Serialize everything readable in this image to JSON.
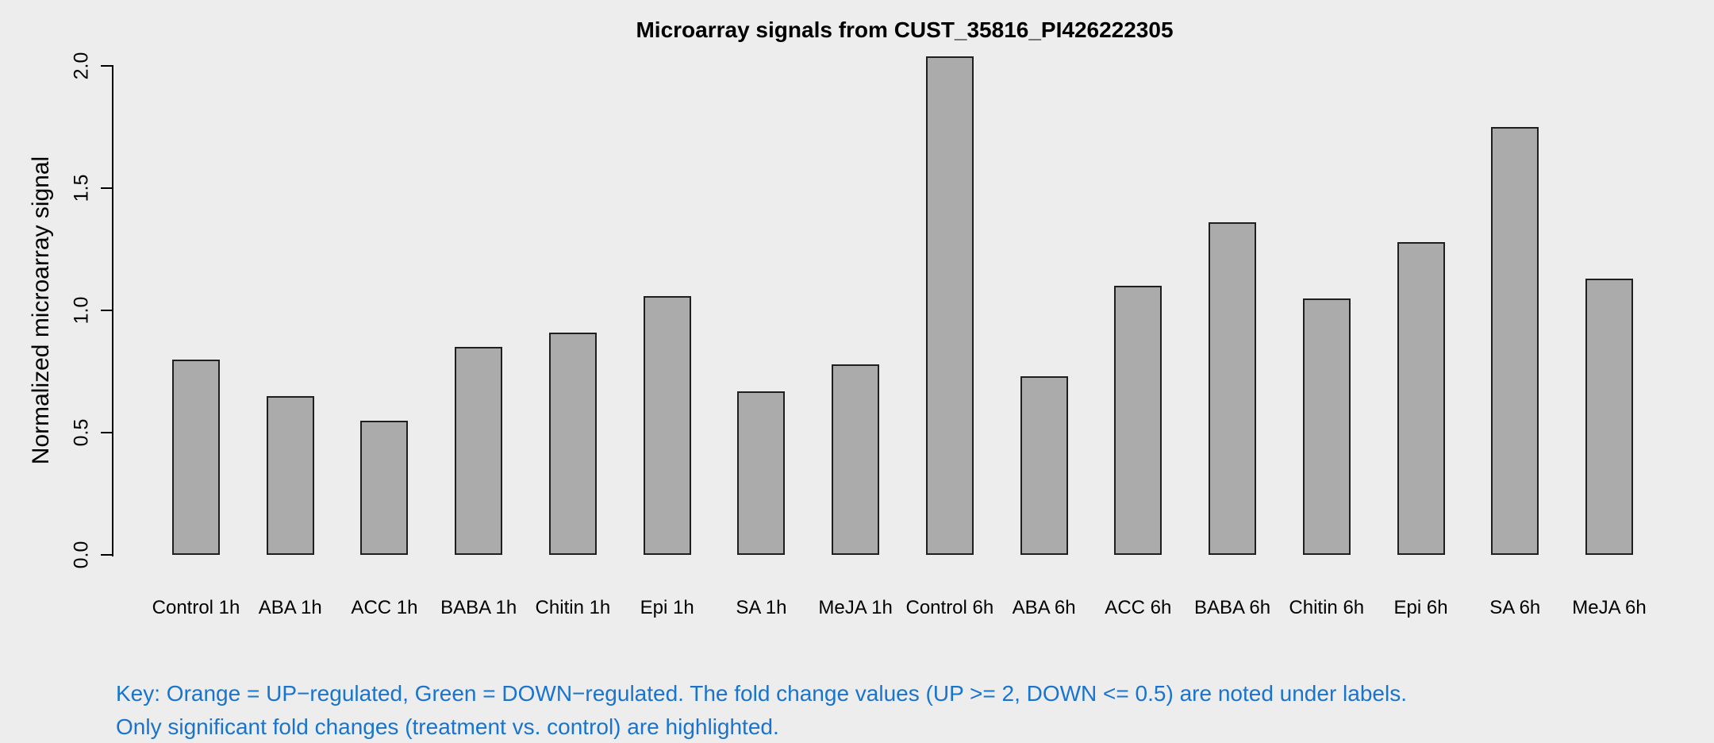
{
  "title": "Microarray signals from CUST_35816_PI426222305",
  "y_axis": {
    "label": "Normalized microarray signal",
    "ticks": [
      "0.0",
      "0.5",
      "1.0",
      "1.5",
      "2.0"
    ]
  },
  "key": {
    "line1": "Key: Orange = UP−regulated, Green = DOWN−regulated. The fold change values (UP >= 2, DOWN <= 0.5) are noted under labels.",
    "line2": "Only significant fold changes (treatment vs. control) are highlighted."
  },
  "colors": {
    "background": "#EDEDED",
    "bar_fill": "#ABABAB",
    "bar_border": "#1F1F1F",
    "axis": "#000000",
    "key_text": "#1874CD"
  },
  "chart_data": {
    "type": "bar",
    "categories": [
      "Control 1h",
      "ABA 1h",
      "ACC 1h",
      "BABA 1h",
      "Chitin 1h",
      "Epi 1h",
      "SA 1h",
      "MeJA 1h",
      "Control 6h",
      "ABA 6h",
      "ACC 6h",
      "BABA 6h",
      "Chitin 6h",
      "Epi 6h",
      "SA 6h",
      "MeJA 6h"
    ],
    "values": [
      0.8,
      0.65,
      0.55,
      0.85,
      0.91,
      1.06,
      0.67,
      0.78,
      2.04,
      0.73,
      1.1,
      1.36,
      1.05,
      1.28,
      1.75,
      1.13
    ],
    "title": "Microarray signals from CUST_35816_PI426222305",
    "xlabel": "",
    "ylabel": "Normalized microarray signal",
    "ylim": [
      0.0,
      2.0
    ],
    "grid": false,
    "legend": "none"
  }
}
